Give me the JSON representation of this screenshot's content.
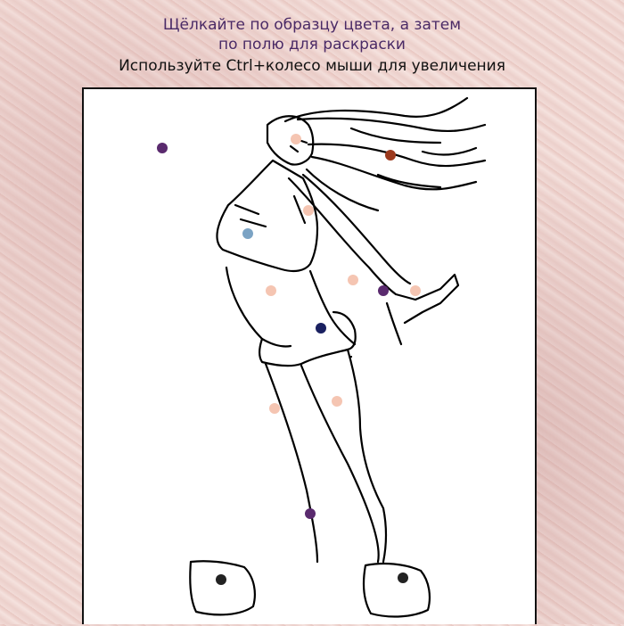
{
  "instructions": {
    "line1": "Щёлкайте по образцу цвета, а затем",
    "line2": "по полю для раскраски",
    "line3": "Используйте Ctrl+колесо мыши для увеличения"
  },
  "swatches": [
    {
      "color": "#5a2a6e"
    },
    {
      "color": "#f5c5b2"
    },
    {
      "color": "#9c3a1e"
    },
    {
      "color": "#f5c5b2"
    },
    {
      "color": "#7ba3c4"
    },
    {
      "color": "#f5c5b2"
    },
    {
      "color": "#f5c5b2"
    },
    {
      "color": "#5a2a6e"
    },
    {
      "color": "#f5c5b2"
    },
    {
      "color": "#1a2060"
    },
    {
      "color": "#f5c5b2"
    },
    {
      "color": "#f5c5b2"
    },
    {
      "color": "#5a2a6e"
    },
    {
      "color": "#222222"
    },
    {
      "color": "#222222"
    }
  ]
}
